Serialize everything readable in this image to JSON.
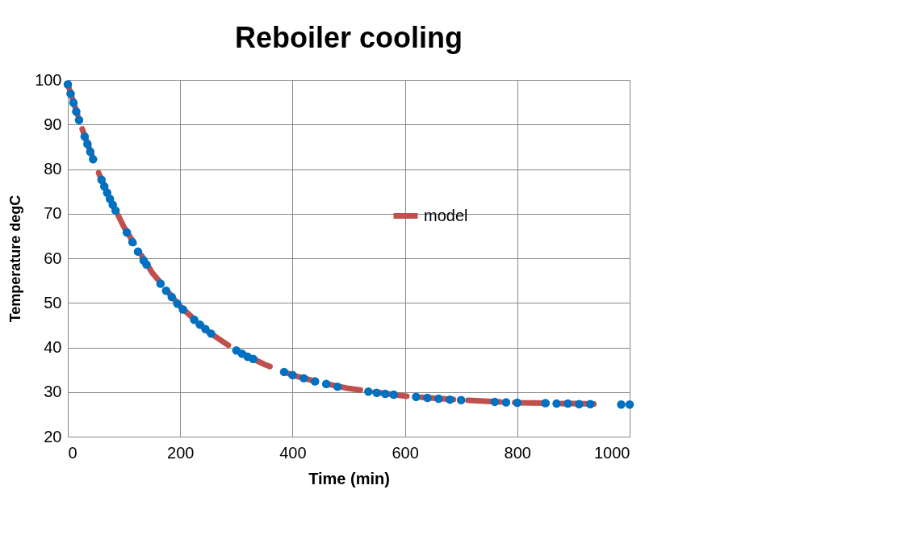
{
  "chart_data": {
    "type": "line",
    "title": "Reboiler cooling",
    "xlabel": "Time (min)",
    "ylabel": "Temperature degC",
    "xlim": [
      0,
      1000
    ],
    "xticks": [
      0,
      200,
      400,
      600,
      800,
      1000
    ],
    "ylim": [
      20,
      100
    ],
    "yticks": [
      20,
      30,
      40,
      50,
      60,
      70,
      80,
      90,
      100
    ],
    "grid": true,
    "legend": "right",
    "series": [
      {
        "name": "model",
        "line_style": "dashed",
        "color": "#c0504d",
        "x": [
          0,
          25,
          50,
          75,
          100,
          150,
          200,
          250,
          300,
          350,
          400,
          450,
          500,
          600,
          700,
          800,
          900,
          940
        ],
        "values": [
          99,
          89.2,
          80.6,
          73.3,
          67.0,
          56.8,
          49.2,
          43.5,
          39.3,
          36.2,
          33.8,
          32.1,
          30.8,
          29.1,
          28.2,
          27.6,
          27.4,
          27.3
        ]
      },
      {
        "type": "scatter",
        "color": "#0070c0",
        "marker": "circle",
        "x": [
          0,
          5,
          10,
          15,
          20,
          30,
          35,
          40,
          45,
          60,
          65,
          70,
          75,
          80,
          85,
          105,
          115,
          125,
          135,
          140,
          165,
          175,
          185,
          195,
          205,
          225,
          235,
          245,
          255,
          300,
          310,
          320,
          330,
          385,
          400,
          420,
          440,
          460,
          480,
          535,
          550,
          565,
          580,
          620,
          640,
          660,
          680,
          700,
          760,
          780,
          800,
          850,
          870,
          890,
          910,
          930,
          985,
          1000
        ],
        "values": [
          99,
          96.9,
          94.9,
          92.9,
          91.0,
          87.3,
          85.6,
          83.9,
          82.2,
          77.6,
          76.1,
          74.7,
          73.3,
          72.0,
          70.7,
          65.8,
          63.6,
          61.5,
          59.5,
          58.6,
          54.3,
          52.7,
          51.3,
          49.8,
          48.5,
          46.2,
          45.1,
          44.1,
          43.1,
          39.3,
          38.6,
          37.9,
          37.4,
          34.5,
          33.8,
          33.1,
          32.4,
          31.8,
          31.2,
          30.1,
          29.8,
          29.6,
          29.4,
          28.9,
          28.7,
          28.5,
          28.3,
          28.2,
          27.8,
          27.7,
          27.6,
          27.5,
          27.4,
          27.4,
          27.3,
          27.3,
          27.2,
          27.2
        ]
      }
    ]
  }
}
